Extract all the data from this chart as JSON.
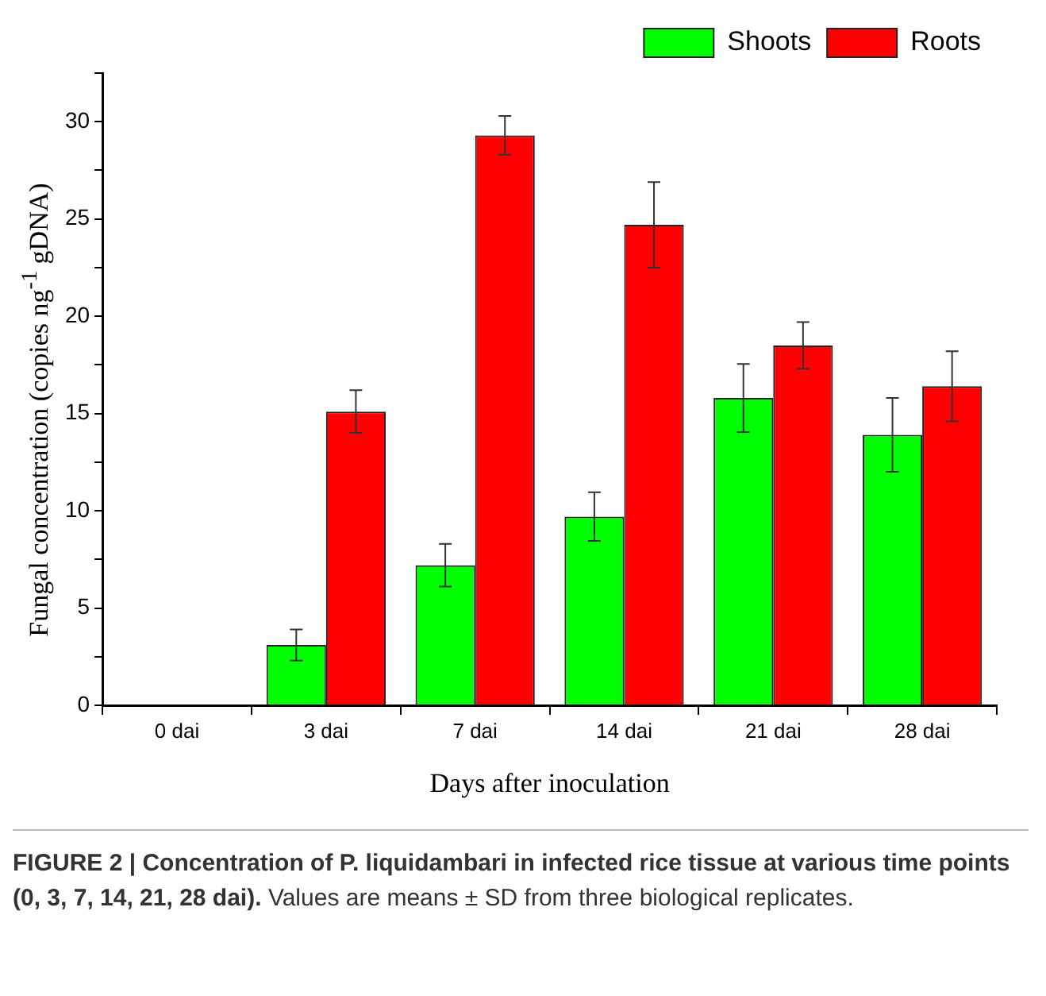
{
  "chart_data": {
    "type": "bar",
    "xlabel": "Days after inoculation",
    "ylabel": "Fungal concentration (copies ng$^{-1}$ gDNA)",
    "categories": [
      "0 dai",
      "3 dai",
      "7 dai",
      "14 dai",
      "21 dai",
      "28 dai"
    ],
    "series": [
      {
        "name": "Shoots",
        "color": "#00ff00",
        "values": [
          0,
          3.1,
          7.2,
          9.7,
          15.8,
          13.9
        ],
        "errors": [
          null,
          0.8,
          1.1,
          1.25,
          1.75,
          1.9
        ]
      },
      {
        "name": "Roots",
        "color": "#ff0000",
        "values": [
          0,
          15.1,
          29.3,
          24.7,
          18.5,
          16.4
        ],
        "errors": [
          null,
          1.1,
          1.0,
          2.2,
          1.2,
          1.8
        ]
      }
    ],
    "ylim": [
      0,
      32.5
    ],
    "yticks": [
      0,
      {
        "value": 2.5,
        "label": null
      },
      5,
      {
        "value": 7.5,
        "label": null
      },
      10,
      {
        "value": 12.5,
        "label": null
      },
      15,
      {
        "value": 17.5,
        "label": null
      },
      20,
      {
        "value": 22.5,
        "label": null
      },
      25,
      {
        "value": 27.5,
        "label": null
      },
      30,
      {
        "value": 32.5,
        "label": null
      }
    ],
    "grid": false,
    "legend": "top right",
    "annotations": [
      "FIGURE 2 | Concentration of P. liquidambari in infected rice tissue at various time points (0, 3, 7, 14, 21, 28 dai).",
      "Values are means ± SD from three biological replicates."
    ]
  }
}
